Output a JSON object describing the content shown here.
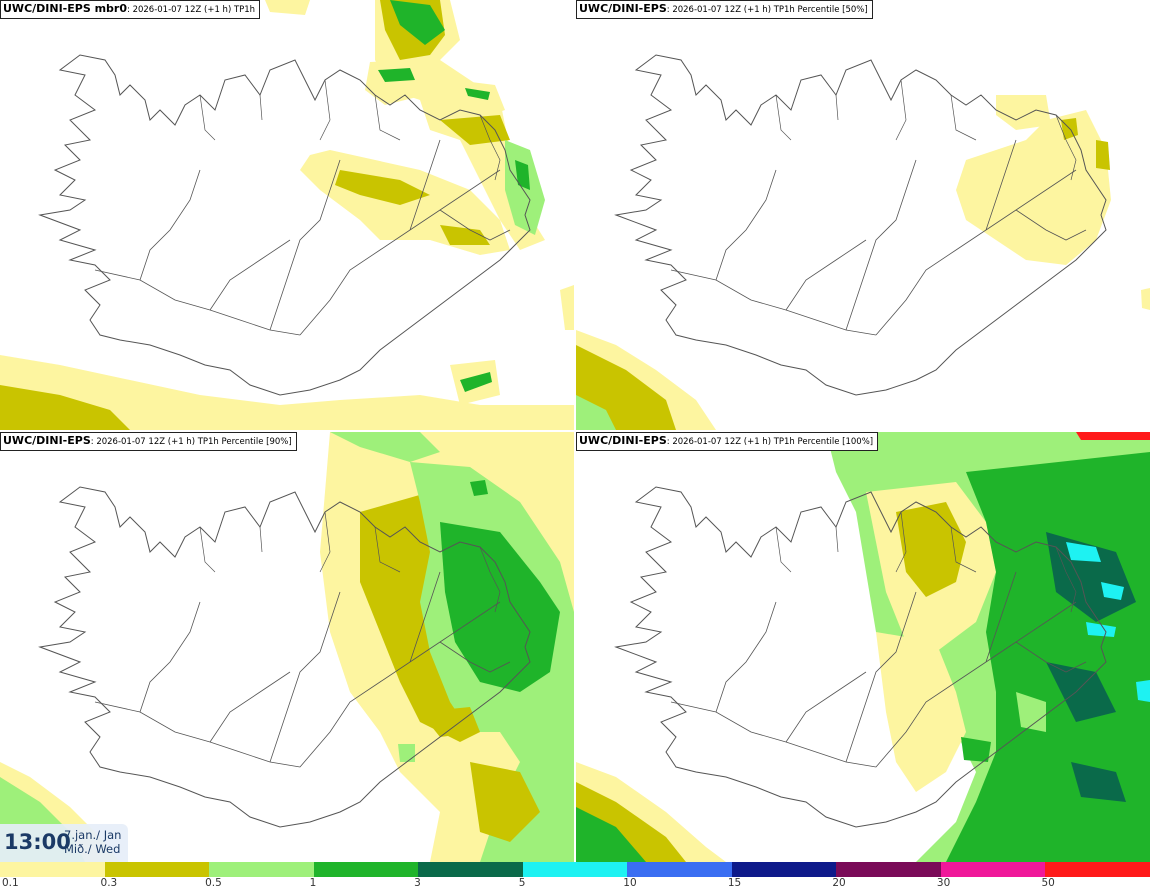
{
  "panels": [
    {
      "title_bold": "UWC/DINI-EPS",
      "title_suffix": " mbr0",
      "title_meta": ": 2026-01-07 12Z (+1 h) TP1h"
    },
    {
      "title_bold": "UWC/DINI-EPS",
      "title_suffix": "",
      "title_meta": ": 2026-01-07 12Z (+1 h) TP1h Percentile [50%]"
    },
    {
      "title_bold": "UWC/DINI-EPS",
      "title_suffix": "",
      "title_meta": ": 2026-01-07 12Z (+1 h) TP1h Percentile [90%]"
    },
    {
      "title_bold": "UWC/DINI-EPS",
      "title_suffix": "",
      "title_meta": ": 2026-01-07 12Z (+1 h) TP1h Percentile [100%]"
    }
  ],
  "timestamp": {
    "time": "13:00",
    "date_line1": "7.jan./ Jan",
    "date_line2": "Mið./ Wed"
  },
  "legend": {
    "colors": [
      "#fdf5a0",
      "#c9c400",
      "#9ef07a",
      "#1fb42a",
      "#0a6a4a",
      "#1ef2f2",
      "#3a6ef2",
      "#0e1a8a",
      "#7a0a58",
      "#f0189a",
      "#ff1a1a"
    ],
    "labels": [
      "0.1",
      "0.3",
      "0.5",
      "1",
      "3",
      "5",
      "10",
      "15",
      "20",
      "30",
      "50"
    ]
  },
  "colors": {
    "coastline": "#555555",
    "yellow": "#fdf5a0",
    "olive": "#c9c400",
    "light_green": "#9ef07a",
    "green": "#1fb42a",
    "dark_green": "#0a6a4a",
    "cyan": "#1ef2f2"
  }
}
